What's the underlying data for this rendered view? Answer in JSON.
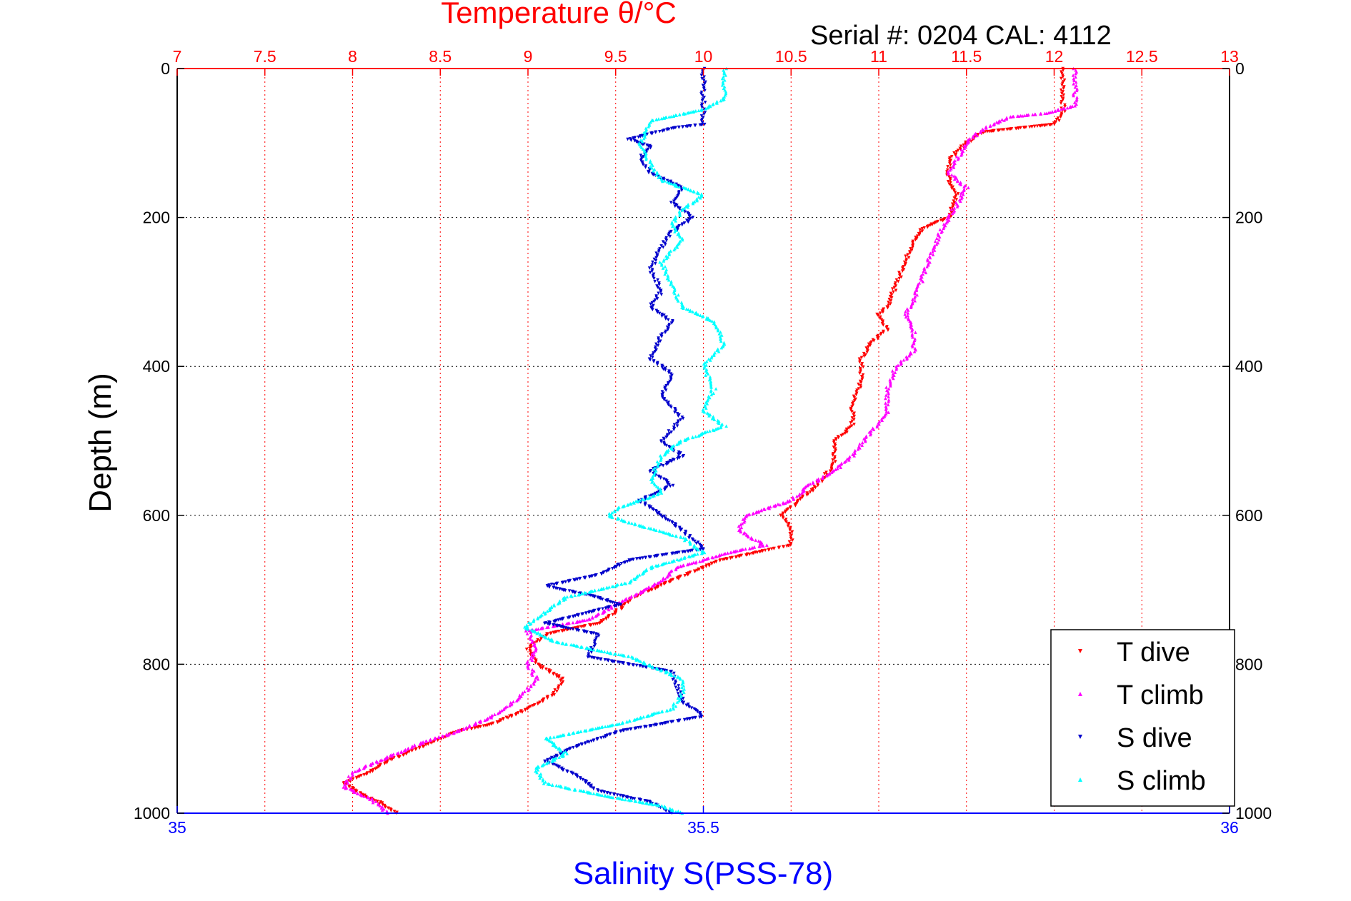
{
  "colors": {
    "temp_axis": "#ff0000",
    "sal_axis": "#0000ff",
    "t_dive": "#ff0000",
    "t_climb": "#ff00ff",
    "s_dive": "#0000cc",
    "s_climb": "#00ffff"
  },
  "chart_data": {
    "type": "scatter",
    "title": "Temperature θ/°C",
    "subtitle": "Serial #: 0204  CAL: 4112",
    "xlabel": "Salinity S(PSS-78)",
    "ylabel": "Depth (m)",
    "x_top": {
      "label": "Temperature θ/°C",
      "range": [
        7,
        13
      ],
      "ticks": [
        "7",
        "7.5",
        "8",
        "8.5",
        "9",
        "9.5",
        "10",
        "10.5",
        "11",
        "11.5",
        "12",
        "12.5",
        "13"
      ]
    },
    "x_bottom": {
      "label": "Salinity S(PSS-78)",
      "range": [
        35,
        36
      ],
      "ticks": [
        "35",
        "35.5",
        "36"
      ]
    },
    "y": {
      "label": "Depth (m)",
      "range": [
        0,
        1000
      ],
      "inverted": true,
      "ticks": [
        "0",
        "200",
        "400",
        "600",
        "800",
        "1000"
      ]
    },
    "grid": true,
    "legend_position": "bottom-right",
    "legend": [
      "T dive",
      "T climb",
      "S dive",
      "S climb"
    ],
    "series": [
      {
        "name": "T dive",
        "axis": "temperature",
        "marker": "triangle-down",
        "points": [
          [
            12.05,
            0
          ],
          [
            12.05,
            60
          ],
          [
            12.0,
            75
          ],
          [
            11.8,
            80
          ],
          [
            11.6,
            85
          ],
          [
            11.5,
            100
          ],
          [
            11.45,
            110
          ],
          [
            11.4,
            125
          ],
          [
            11.4,
            150
          ],
          [
            11.45,
            170
          ],
          [
            11.4,
            200
          ],
          [
            11.25,
            215
          ],
          [
            11.2,
            230
          ],
          [
            11.15,
            260
          ],
          [
            11.1,
            290
          ],
          [
            11.05,
            320
          ],
          [
            11.0,
            330
          ],
          [
            11.05,
            350
          ],
          [
            10.95,
            370
          ],
          [
            10.9,
            390
          ],
          [
            10.9,
            420
          ],
          [
            10.85,
            450
          ],
          [
            10.85,
            480
          ],
          [
            10.75,
            500
          ],
          [
            10.75,
            530
          ],
          [
            10.65,
            560
          ],
          [
            10.55,
            580
          ],
          [
            10.45,
            600
          ],
          [
            10.5,
            620
          ],
          [
            10.5,
            640
          ],
          [
            10.3,
            650
          ],
          [
            10.1,
            660
          ],
          [
            9.9,
            680
          ],
          [
            9.75,
            695
          ],
          [
            9.6,
            710
          ],
          [
            9.5,
            730
          ],
          [
            9.4,
            745
          ],
          [
            9.1,
            760
          ],
          [
            9.0,
            780
          ],
          [
            9.05,
            800
          ],
          [
            9.2,
            820
          ],
          [
            9.15,
            840
          ],
          [
            9.0,
            860
          ],
          [
            8.8,
            880
          ],
          [
            8.6,
            890
          ],
          [
            8.4,
            910
          ],
          [
            8.2,
            930
          ],
          [
            8.1,
            945
          ],
          [
            7.95,
            960
          ],
          [
            8.05,
            975
          ],
          [
            8.15,
            985
          ],
          [
            8.25,
            1000
          ]
        ]
      },
      {
        "name": "T climb",
        "axis": "temperature",
        "marker": "triangle-up",
        "points": [
          [
            12.12,
            0
          ],
          [
            12.12,
            50
          ],
          [
            11.95,
            60
          ],
          [
            11.75,
            65
          ],
          [
            11.6,
            80
          ],
          [
            11.5,
            100
          ],
          [
            11.45,
            120
          ],
          [
            11.4,
            140
          ],
          [
            11.5,
            160
          ],
          [
            11.45,
            180
          ],
          [
            11.4,
            200
          ],
          [
            11.35,
            220
          ],
          [
            11.3,
            250
          ],
          [
            11.25,
            280
          ],
          [
            11.2,
            310
          ],
          [
            11.15,
            330
          ],
          [
            11.2,
            350
          ],
          [
            11.2,
            380
          ],
          [
            11.1,
            400
          ],
          [
            11.05,
            430
          ],
          [
            11.05,
            460
          ],
          [
            10.95,
            490
          ],
          [
            10.85,
            520
          ],
          [
            10.75,
            540
          ],
          [
            10.6,
            560
          ],
          [
            10.5,
            580
          ],
          [
            10.25,
            600
          ],
          [
            10.2,
            620
          ],
          [
            10.35,
            640
          ],
          [
            10.15,
            650
          ],
          [
            9.85,
            670
          ],
          [
            9.75,
            690
          ],
          [
            9.5,
            720
          ],
          [
            9.35,
            740
          ],
          [
            9.0,
            755
          ],
          [
            9.05,
            780
          ],
          [
            9.0,
            800
          ],
          [
            9.05,
            820
          ],
          [
            8.95,
            845
          ],
          [
            8.8,
            870
          ],
          [
            8.6,
            890
          ],
          [
            8.4,
            905
          ],
          [
            8.2,
            925
          ],
          [
            8.0,
            945
          ],
          [
            7.95,
            965
          ],
          [
            8.1,
            980
          ],
          [
            8.2,
            1000
          ]
        ]
      },
      {
        "name": "S dive",
        "axis": "salinity",
        "marker": "triangle-down",
        "points": [
          [
            35.5,
            0
          ],
          [
            35.5,
            75
          ],
          [
            35.47,
            80
          ],
          [
            35.43,
            95
          ],
          [
            35.45,
            105
          ],
          [
            35.44,
            120
          ],
          [
            35.45,
            140
          ],
          [
            35.48,
            160
          ],
          [
            35.47,
            180
          ],
          [
            35.49,
            200
          ],
          [
            35.47,
            220
          ],
          [
            35.46,
            240
          ],
          [
            35.45,
            270
          ],
          [
            35.46,
            300
          ],
          [
            35.45,
            320
          ],
          [
            35.47,
            340
          ],
          [
            35.46,
            360
          ],
          [
            35.45,
            390
          ],
          [
            35.47,
            410
          ],
          [
            35.46,
            440
          ],
          [
            35.48,
            470
          ],
          [
            35.46,
            500
          ],
          [
            35.48,
            520
          ],
          [
            35.45,
            540
          ],
          [
            35.47,
            560
          ],
          [
            35.44,
            580
          ],
          [
            35.46,
            600
          ],
          [
            35.48,
            620
          ],
          [
            35.5,
            645
          ],
          [
            35.43,
            660
          ],
          [
            35.4,
            680
          ],
          [
            35.35,
            695
          ],
          [
            35.4,
            710
          ],
          [
            35.42,
            720
          ],
          [
            35.35,
            745
          ],
          [
            35.4,
            760
          ],
          [
            35.39,
            790
          ],
          [
            35.47,
            810
          ],
          [
            35.48,
            850
          ],
          [
            35.5,
            870
          ],
          [
            35.42,
            890
          ],
          [
            35.38,
            910
          ],
          [
            35.35,
            930
          ],
          [
            35.38,
            950
          ],
          [
            35.4,
            970
          ],
          [
            35.45,
            985
          ],
          [
            35.47,
            1000
          ]
        ]
      },
      {
        "name": "S climb",
        "axis": "salinity",
        "marker": "triangle-up",
        "points": [
          [
            35.52,
            0
          ],
          [
            35.52,
            40
          ],
          [
            35.5,
            55
          ],
          [
            35.45,
            70
          ],
          [
            35.44,
            100
          ],
          [
            35.45,
            130
          ],
          [
            35.46,
            150
          ],
          [
            35.5,
            170
          ],
          [
            35.48,
            190
          ],
          [
            35.47,
            210
          ],
          [
            35.48,
            230
          ],
          [
            35.46,
            260
          ],
          [
            35.47,
            290
          ],
          [
            35.48,
            320
          ],
          [
            35.51,
            340
          ],
          [
            35.52,
            370
          ],
          [
            35.5,
            400
          ],
          [
            35.51,
            430
          ],
          [
            35.5,
            460
          ],
          [
            35.52,
            480
          ],
          [
            35.48,
            500
          ],
          [
            35.46,
            520
          ],
          [
            35.45,
            550
          ],
          [
            35.46,
            570
          ],
          [
            35.42,
            590
          ],
          [
            35.41,
            600
          ],
          [
            35.43,
            610
          ],
          [
            35.48,
            630
          ],
          [
            35.5,
            650
          ],
          [
            35.45,
            670
          ],
          [
            35.43,
            690
          ],
          [
            35.37,
            710
          ],
          [
            35.35,
            730
          ],
          [
            35.33,
            750
          ],
          [
            35.36,
            770
          ],
          [
            35.43,
            790
          ],
          [
            35.48,
            820
          ],
          [
            35.48,
            840
          ],
          [
            35.47,
            860
          ],
          [
            35.42,
            880
          ],
          [
            35.35,
            900
          ],
          [
            35.37,
            920
          ],
          [
            35.34,
            940
          ],
          [
            35.35,
            960
          ],
          [
            35.4,
            975
          ],
          [
            35.46,
            990
          ],
          [
            35.48,
            1000
          ]
        ]
      }
    ]
  }
}
